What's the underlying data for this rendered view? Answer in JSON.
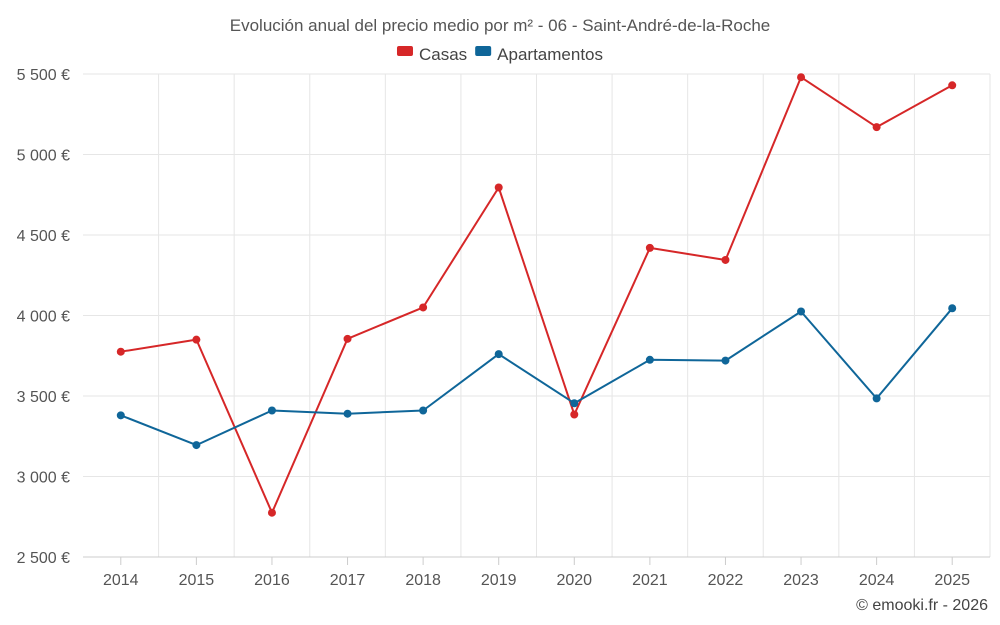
{
  "chart_data": {
    "type": "line",
    "title": "Evolución anual del precio medio por m² - 06 - Saint-André-de-la-Roche",
    "categories": [
      "2014",
      "2015",
      "2016",
      "2017",
      "2018",
      "2019",
      "2020",
      "2021",
      "2022",
      "2023",
      "2024",
      "2025"
    ],
    "series": [
      {
        "name": "Casas",
        "color": "#d62728",
        "values": [
          3775,
          3850,
          2775,
          3855,
          4050,
          4795,
          3385,
          4420,
          4345,
          5480,
          5170,
          5430
        ]
      },
      {
        "name": "Apartamentos",
        "color": "#0f6699",
        "values": [
          3380,
          3195,
          3410,
          3390,
          3410,
          3760,
          3455,
          3725,
          3720,
          4025,
          3485,
          4045
        ]
      }
    ],
    "ylim": [
      2500,
      5500
    ],
    "yticks": [
      2500,
      3000,
      3500,
      4000,
      4500,
      5000,
      5500
    ],
    "ytick_labels": [
      "2 500 €",
      "3 000 €",
      "3 500 €",
      "4 000 €",
      "4 500 €",
      "5 000 €",
      "5 500 €"
    ],
    "xlabel": "",
    "ylabel": "",
    "grid": true,
    "legend_position": "top-center"
  },
  "credit": "© emooki.fr - 2026"
}
